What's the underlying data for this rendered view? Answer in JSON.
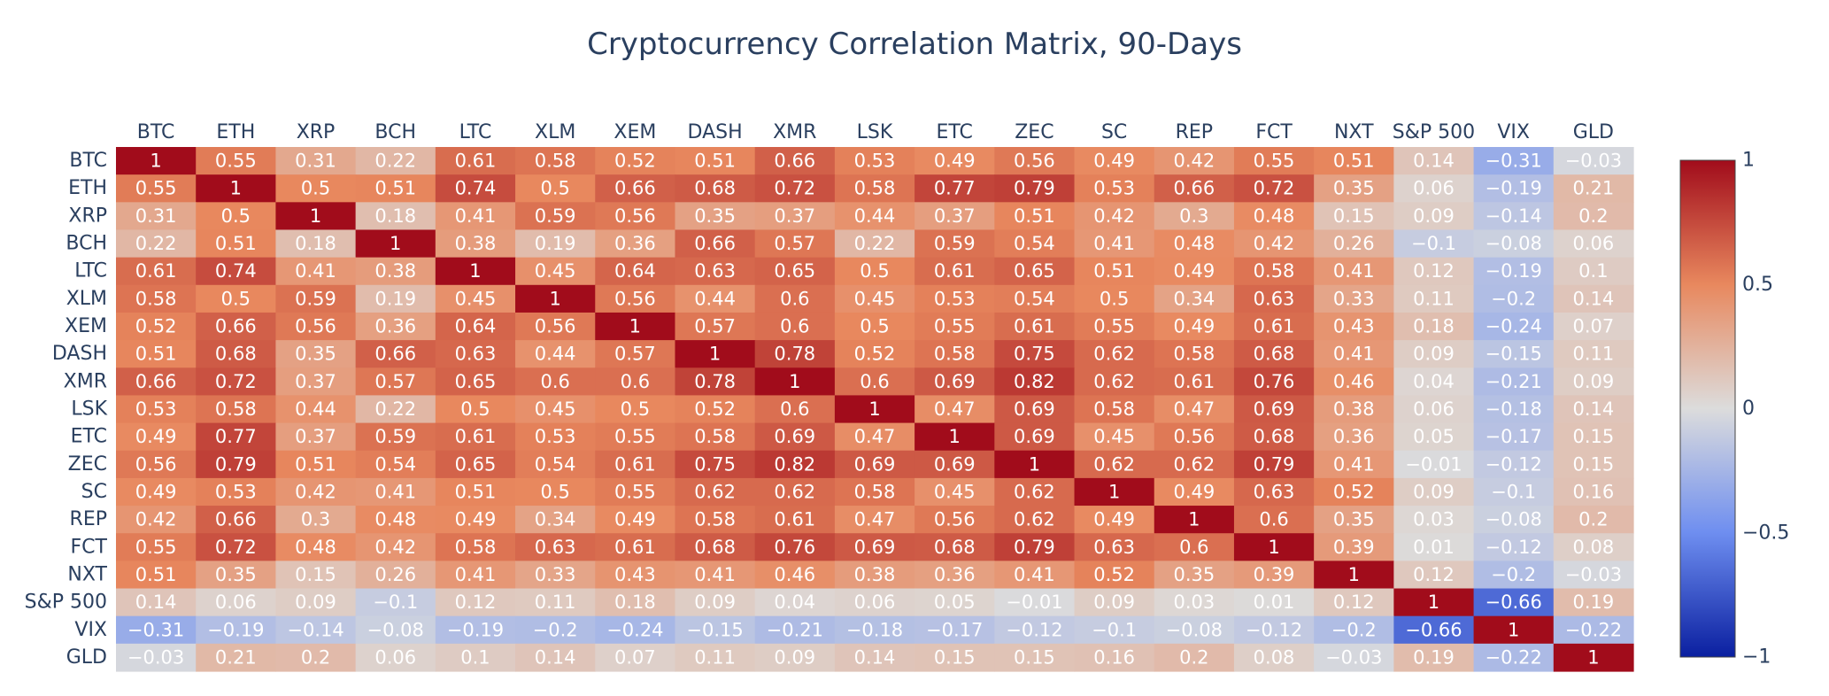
{
  "chart_data": {
    "type": "heatmap",
    "title": "Cryptocurrency Correlation Matrix, 90-Days",
    "xlabel": "",
    "ylabel": "",
    "x_labels": [
      "BTC",
      "ETH",
      "XRP",
      "BCH",
      "LTC",
      "XLM",
      "XEM",
      "DASH",
      "XMR",
      "LSK",
      "ETC",
      "ZEC",
      "SC",
      "REP",
      "FCT",
      "NXT",
      "S&P 500",
      "VIX",
      "GLD"
    ],
    "y_labels": [
      "BTC",
      "ETH",
      "XRP",
      "BCH",
      "LTC",
      "XLM",
      "XEM",
      "DASH",
      "XMR",
      "LSK",
      "ETC",
      "ZEC",
      "SC",
      "REP",
      "FCT",
      "NXT",
      "S&P 500",
      "VIX",
      "GLD"
    ],
    "z": [
      [
        1,
        0.55,
        0.31,
        0.22,
        0.61,
        0.58,
        0.52,
        0.51,
        0.66,
        0.53,
        0.49,
        0.56,
        0.49,
        0.42,
        0.55,
        0.51,
        0.14,
        -0.31,
        -0.03
      ],
      [
        0.55,
        1,
        0.5,
        0.51,
        0.74,
        0.5,
        0.66,
        0.68,
        0.72,
        0.58,
        0.77,
        0.79,
        0.53,
        0.66,
        0.72,
        0.35,
        0.06,
        -0.19,
        0.21
      ],
      [
        0.31,
        0.5,
        1,
        0.18,
        0.41,
        0.59,
        0.56,
        0.35,
        0.37,
        0.44,
        0.37,
        0.51,
        0.42,
        0.3,
        0.48,
        0.15,
        0.09,
        -0.14,
        0.2
      ],
      [
        0.22,
        0.51,
        0.18,
        1,
        0.38,
        0.19,
        0.36,
        0.66,
        0.57,
        0.22,
        0.59,
        0.54,
        0.41,
        0.48,
        0.42,
        0.26,
        -0.1,
        -0.08,
        0.06
      ],
      [
        0.61,
        0.74,
        0.41,
        0.38,
        1,
        0.45,
        0.64,
        0.63,
        0.65,
        0.5,
        0.61,
        0.65,
        0.51,
        0.49,
        0.58,
        0.41,
        0.12,
        -0.19,
        0.1
      ],
      [
        0.58,
        0.5,
        0.59,
        0.19,
        0.45,
        1,
        0.56,
        0.44,
        0.6,
        0.45,
        0.53,
        0.54,
        0.5,
        0.34,
        0.63,
        0.33,
        0.11,
        -0.2,
        0.14
      ],
      [
        0.52,
        0.66,
        0.56,
        0.36,
        0.64,
        0.56,
        1,
        0.57,
        0.6,
        0.5,
        0.55,
        0.61,
        0.55,
        0.49,
        0.61,
        0.43,
        0.18,
        -0.24,
        0.07
      ],
      [
        0.51,
        0.68,
        0.35,
        0.66,
        0.63,
        0.44,
        0.57,
        1,
        0.78,
        0.52,
        0.58,
        0.75,
        0.62,
        0.58,
        0.68,
        0.41,
        0.09,
        -0.15,
        0.11
      ],
      [
        0.66,
        0.72,
        0.37,
        0.57,
        0.65,
        0.6,
        0.6,
        0.78,
        1,
        0.6,
        0.69,
        0.82,
        0.62,
        0.61,
        0.76,
        0.46,
        0.04,
        -0.21,
        0.09
      ],
      [
        0.53,
        0.58,
        0.44,
        0.22,
        0.5,
        0.45,
        0.5,
        0.52,
        0.6,
        1,
        0.47,
        0.69,
        0.58,
        0.47,
        0.69,
        0.38,
        0.06,
        -0.18,
        0.14
      ],
      [
        0.49,
        0.77,
        0.37,
        0.59,
        0.61,
        0.53,
        0.55,
        0.58,
        0.69,
        0.47,
        1,
        0.69,
        0.45,
        0.56,
        0.68,
        0.36,
        0.05,
        -0.17,
        0.15
      ],
      [
        0.56,
        0.79,
        0.51,
        0.54,
        0.65,
        0.54,
        0.61,
        0.75,
        0.82,
        0.69,
        0.69,
        1,
        0.62,
        0.62,
        0.79,
        0.41,
        -0.01,
        -0.12,
        0.15
      ],
      [
        0.49,
        0.53,
        0.42,
        0.41,
        0.51,
        0.5,
        0.55,
        0.62,
        0.62,
        0.58,
        0.45,
        0.62,
        1,
        0.49,
        0.63,
        0.52,
        0.09,
        -0.1,
        0.16
      ],
      [
        0.42,
        0.66,
        0.3,
        0.48,
        0.49,
        0.34,
        0.49,
        0.58,
        0.61,
        0.47,
        0.56,
        0.62,
        0.49,
        1,
        0.6,
        0.35,
        0.03,
        -0.08,
        0.2
      ],
      [
        0.55,
        0.72,
        0.48,
        0.42,
        0.58,
        0.63,
        0.61,
        0.68,
        0.76,
        0.69,
        0.68,
        0.79,
        0.63,
        0.6,
        1,
        0.39,
        0.01,
        -0.12,
        0.08
      ],
      [
        0.51,
        0.35,
        0.15,
        0.26,
        0.41,
        0.33,
        0.43,
        0.41,
        0.46,
        0.38,
        0.36,
        0.41,
        0.52,
        0.35,
        0.39,
        1,
        0.12,
        -0.2,
        -0.03
      ],
      [
        0.14,
        0.06,
        0.09,
        -0.1,
        0.12,
        0.11,
        0.18,
        0.09,
        0.04,
        0.06,
        0.05,
        -0.01,
        0.09,
        0.03,
        0.01,
        0.12,
        1,
        -0.66,
        0.19
      ],
      [
        -0.31,
        -0.19,
        -0.14,
        -0.08,
        -0.19,
        -0.2,
        -0.24,
        -0.15,
        -0.21,
        -0.18,
        -0.17,
        -0.12,
        -0.1,
        -0.08,
        -0.12,
        -0.2,
        -0.66,
        1,
        -0.22
      ],
      [
        -0.03,
        0.21,
        0.2,
        0.06,
        0.1,
        0.14,
        0.07,
        0.11,
        0.09,
        0.14,
        0.15,
        0.15,
        0.16,
        0.2,
        0.08,
        -0.03,
        0.19,
        -0.22,
        1
      ]
    ],
    "zmin": -1,
    "zmax": 1,
    "colorscale": [
      [
        0.0,
        "#0a1fa0"
      ],
      [
        0.25,
        "#6e8ef0"
      ],
      [
        0.5,
        "#dcdcdc"
      ],
      [
        0.75,
        "#e8885e"
      ],
      [
        1.0,
        "#a10c1b"
      ]
    ],
    "colorbar": {
      "ticks": [
        1,
        0.5,
        0,
        -0.5,
        -1
      ],
      "tick_labels": [
        "1",
        "0.5",
        "0",
        "−0.5",
        "−1"
      ]
    },
    "x_axis_position": "top",
    "legend_position": "right",
    "grid": false,
    "annotation_color": "#ffffff"
  }
}
